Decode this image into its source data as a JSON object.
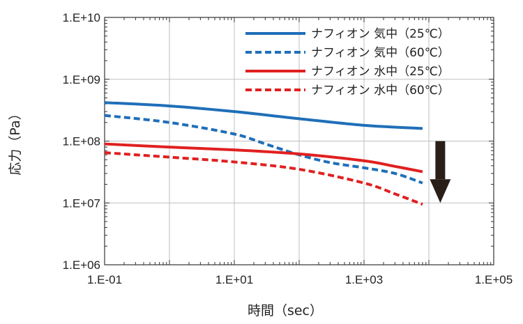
{
  "chart_data": {
    "type": "line",
    "xscale": "log",
    "yscale": "log",
    "xlim": [
      0.1,
      100000
    ],
    "ylim": [
      1000000,
      10000000000
    ],
    "xlabel": "時間（sec）",
    "ylabel": "応力（Pa）",
    "x_tick_values": [
      0.1,
      10,
      1000,
      100000
    ],
    "x_tick_labels": [
      "1.E-01",
      "1.E+01",
      "1.E+03",
      "1.E+05"
    ],
    "y_tick_values": [
      1000000,
      10000000,
      100000000,
      1000000000,
      10000000000
    ],
    "y_tick_labels": [
      "1.E+06",
      "1.E+07",
      "1.E+08",
      "1.E+09",
      "1.E+10"
    ],
    "grid": true,
    "legend_position": "top-right",
    "series": [
      {
        "name": "ナフィオン 気中（25℃）",
        "color": "#1f6fb8",
        "dash": "solid",
        "x": [
          0.1,
          1,
          10,
          100,
          1000,
          8000
        ],
        "y": [
          420000000,
          370000000,
          300000000,
          230000000,
          180000000,
          160000000
        ]
      },
      {
        "name": "ナフィオン 気中（60℃）",
        "color": "#1f6fb8",
        "dash": "dashed",
        "x": [
          0.1,
          1,
          10,
          30,
          100,
          300,
          1000,
          3000,
          8000
        ],
        "y": [
          260000000,
          200000000,
          130000000,
          90000000,
          60000000,
          45000000,
          37000000,
          30000000,
          21000000
        ]
      },
      {
        "name": "ナフィオン 水中（25℃）",
        "color": "#e02020",
        "dash": "solid",
        "x": [
          0.1,
          1,
          10,
          100,
          1000,
          3000,
          8000
        ],
        "y": [
          90000000,
          80000000,
          72000000,
          62000000,
          48000000,
          39000000,
          32000000
        ]
      },
      {
        "name": "ナフィオン 水中（60℃）",
        "color": "#e02020",
        "dash": "dashed",
        "x": [
          0.1,
          1,
          10,
          100,
          1000,
          3000,
          8000
        ],
        "y": [
          65000000,
          55000000,
          46000000,
          35000000,
          21000000,
          14000000,
          9500000
        ]
      }
    ],
    "annotation": {
      "type": "arrow",
      "direction": "down",
      "color": "#2a1f18",
      "at_x": 15000,
      "from_y": 100000000,
      "to_y": 10000000
    }
  }
}
